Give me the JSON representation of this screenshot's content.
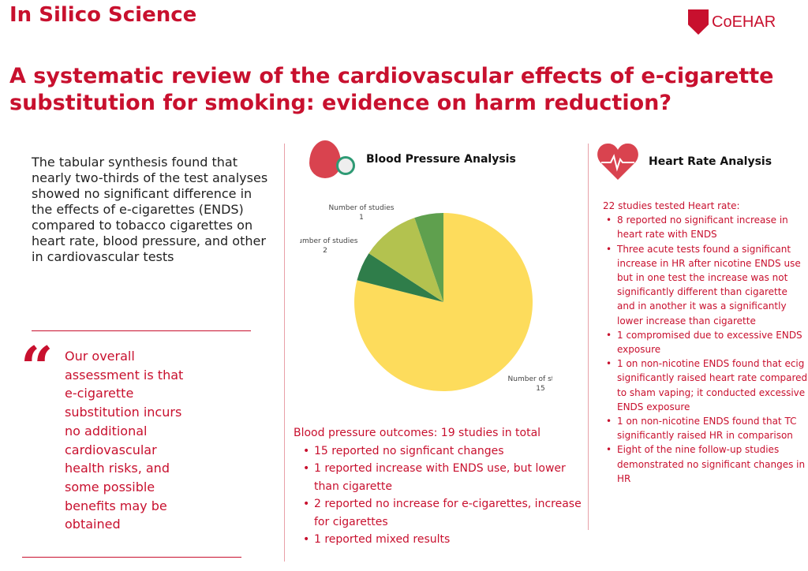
{
  "header": {
    "brand": "In Silico Science",
    "logo_text": "CoEHAR",
    "title": "A systematic review of the cardiovascular effects of e-cigarette substitution for smoking: evidence on harm reduction?"
  },
  "left": {
    "intro": "The tabular synthesis found that nearly two-thirds of the test analyses showed no significant difference in the effects of e-cigarettes (ENDS) compared to tobacco cigarettes on heart rate, blood pressure, and other in cardiovascular tests",
    "quote_mark": "“",
    "quote": "Our overall assessment is that e-cigarette substitution incurs no additional cardiovascular health risks, and some possible benefits may be obtained"
  },
  "bp": {
    "heading": "Blood Pressure Analysis",
    "summary": "Blood pressure outcomes: 19 studies in total",
    "items": [
      "15 reported no signficant changes",
      "1 reported increase with ENDS use, but lower than cigarette",
      "2 reported no increase for e-cigarettes, increase for cigarettes",
      "1 reported mixed results"
    ]
  },
  "hr": {
    "heading": "Heart Rate Analysis",
    "summary": "22 studies tested Heart rate:",
    "items": [
      "8 reported no significant increase in heart rate with ENDS",
      "Three acute tests found a significant increase in HR after nicotine ENDS use but in one test the increase was not significantly different than cigarette and in another it was a significantly lower increase than cigarette",
      "1 compromised due to excessive ENDS exposure",
      "1 on non-nicotine ENDS found that ecig significantly raised heart rate compared to sham vaping; it conducted excessive ENDS exposure",
      "1 on non-nicotine ENDS found that TC significantly raised HR in comparison",
      "Eight of the nine follow-up studies demonstrated no significant changes in HR"
    ]
  },
  "chart_data": {
    "type": "pie",
    "title": "Blood Pressure Analysis",
    "categories": [
      "No significant changes",
      "Increase with ENDS but lower than cigarette",
      "No increase for e-cigarettes, increase for cigarettes",
      "Mixed results"
    ],
    "values": [
      15,
      1,
      2,
      1
    ],
    "colors": [
      "#fddc5c",
      "#2f7d4a",
      "#b3c24f",
      "#5fa04e"
    ],
    "label_name": "Number of studies",
    "labels": [
      {
        "text": "Number of studies",
        "value": "15"
      },
      {
        "text": "Number of studies",
        "value": "2"
      },
      {
        "text": "Number of studies",
        "value": "1"
      }
    ]
  }
}
